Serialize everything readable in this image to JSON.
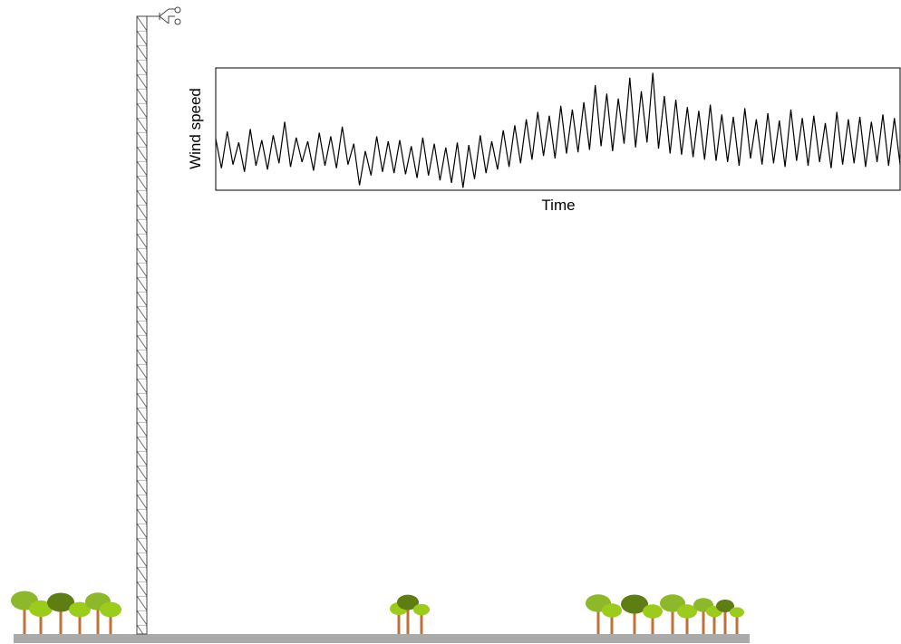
{
  "chart_data": {
    "type": "line",
    "ylabel": "Wind speed",
    "xlabel": "Time",
    "color": "#000000",
    "ylim": [
      0,
      10
    ],
    "values": [
      4.2,
      1.8,
      4.8,
      2.1,
      3.9,
      1.5,
      5.0,
      2.0,
      4.1,
      1.7,
      4.5,
      2.2,
      5.6,
      1.9,
      4.3,
      2.3,
      4.0,
      1.6,
      4.7,
      2.0,
      4.4,
      1.8,
      5.2,
      2.1,
      3.8,
      0.4,
      3.2,
      1.2,
      4.4,
      1.5,
      4.0,
      1.4,
      4.1,
      1.3,
      3.6,
      1.0,
      4.3,
      1.2,
      3.8,
      0.8,
      3.5,
      0.6,
      3.9,
      0.2,
      3.7,
      0.9,
      4.5,
      1.4,
      4.0,
      1.7,
      4.9,
      1.9,
      5.3,
      2.2,
      5.8,
      2.5,
      6.4,
      2.8,
      6.1,
      2.6,
      6.9,
      3.0,
      6.6,
      3.1,
      7.2,
      3.3,
      8.6,
      3.6,
      7.9,
      3.2,
      7.5,
      3.8,
      9.2,
      3.5,
      8.1,
      3.9,
      9.6,
      3.4,
      7.7,
      3.0,
      7.4,
      2.9,
      6.8,
      2.7,
      6.5,
      2.5,
      7.0,
      2.4,
      6.2,
      2.3,
      6.0,
      2.0,
      6.7,
      2.6,
      5.8,
      2.1,
      6.3,
      2.2,
      5.7,
      1.9,
      6.6,
      2.4,
      5.9,
      2.0,
      6.1,
      2.3,
      5.5,
      1.8,
      6.4,
      2.1,
      5.8,
      2.2,
      6.0,
      1.9,
      5.6,
      2.3,
      6.2,
      2.0,
      5.9,
      2.1
    ]
  }
}
